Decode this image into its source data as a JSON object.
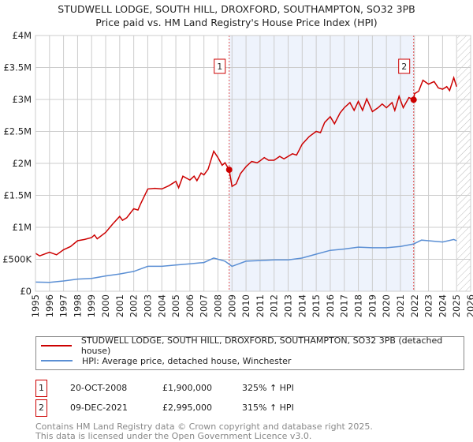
{
  "title": "STUDWELL LODGE, SOUTH HILL, DROXFORD, SOUTHAMPTON, SO32 3PB",
  "subtitle": "Price paid vs. HM Land Registry's House Price Index (HPI)",
  "colors": {
    "property": "#cc0000",
    "hpi": "#5b8fd4",
    "shade": "#eef3fc"
  },
  "chart_data": {
    "type": "line",
    "xlim": [
      1995,
      2026
    ],
    "ylim": [
      0,
      4000000
    ],
    "yticks": [
      0,
      500000,
      1000000,
      1500000,
      2000000,
      2500000,
      3000000,
      3500000,
      4000000
    ],
    "ytick_labels": [
      "£0",
      "£500K",
      "£1M",
      "£1.5M",
      "£2M",
      "£2.5M",
      "£3M",
      "£3.5M",
      "£4M"
    ],
    "xticks": [
      1995,
      1996,
      1997,
      1998,
      1999,
      2000,
      2001,
      2002,
      2003,
      2004,
      2005,
      2006,
      2007,
      2008,
      2009,
      2010,
      2011,
      2012,
      2013,
      2014,
      2015,
      2016,
      2017,
      2018,
      2019,
      2020,
      2021,
      2022,
      2023,
      2024,
      2025,
      2026
    ],
    "grid": true,
    "forecast_hatch_from": 2025.05,
    "series": [
      {
        "name": "STUDWELL LODGE, SOUTH HILL, DROXFORD, SOUTHAMPTON, SO32 3PB (detached house)",
        "color": "#cc0000",
        "x": [
          1995,
          1995.3,
          1996,
          1996.5,
          1997,
          1997.5,
          1998,
          1998.5,
          1999,
          1999.2,
          1999.4,
          2000,
          2000.5,
          2001,
          2001.2,
          2001.5,
          2002,
          2002.3,
          2002.5,
          2003,
          2003.5,
          2004,
          2004.5,
          2005,
          2005.2,
          2005.5,
          2006,
          2006.3,
          2006.5,
          2006.8,
          2007,
          2007.3,
          2007.7,
          2008,
          2008.3,
          2008.5,
          2008.8,
          2009,
          2009.3,
          2009.6,
          2010,
          2010.4,
          2010.8,
          2011,
          2011.3,
          2011.6,
          2012,
          2012.4,
          2012.7,
          2013,
          2013.3,
          2013.6,
          2014,
          2014.5,
          2015,
          2015.3,
          2015.6,
          2016,
          2016.3,
          2016.7,
          2017,
          2017.4,
          2017.7,
          2018,
          2018.3,
          2018.6,
          2019,
          2019.4,
          2019.7,
          2020,
          2020.4,
          2020.6,
          2020.9,
          2021.2,
          2021.6,
          2021.94,
          2022,
          2022.3,
          2022.6,
          2023,
          2023.4,
          2023.7,
          2024,
          2024.3,
          2024.5,
          2024.8,
          2025
        ],
        "y": [
          594000,
          553000,
          610000,
          570000,
          650000,
          700000,
          790000,
          810000,
          840000,
          880000,
          820000,
          920000,
          1050000,
          1170000,
          1110000,
          1150000,
          1290000,
          1270000,
          1370000,
          1600000,
          1610000,
          1600000,
          1650000,
          1720000,
          1620000,
          1800000,
          1740000,
          1800000,
          1730000,
          1850000,
          1820000,
          1910000,
          2190000,
          2090000,
          1970000,
          2010000,
          1900000,
          1640000,
          1680000,
          1840000,
          1950000,
          2030000,
          2010000,
          2040000,
          2090000,
          2050000,
          2050000,
          2110000,
          2070000,
          2110000,
          2150000,
          2130000,
          2300000,
          2420000,
          2500000,
          2480000,
          2640000,
          2730000,
          2620000,
          2790000,
          2870000,
          2950000,
          2830000,
          2970000,
          2830000,
          3010000,
          2810000,
          2870000,
          2930000,
          2870000,
          2950000,
          2830000,
          3050000,
          2870000,
          3030000,
          2995000,
          3090000,
          3130000,
          3300000,
          3240000,
          3280000,
          3180000,
          3160000,
          3200000,
          3140000,
          3340000,
          3200000
        ]
      },
      {
        "name": "HPI: Average price, detached house, Winchester",
        "color": "#5b8fd4",
        "x": [
          1995,
          1996,
          1997,
          1998,
          1999,
          2000,
          2001,
          2002,
          2003,
          2004,
          2005,
          2006,
          2007,
          2007.7,
          2008.5,
          2009,
          2010,
          2011,
          2012,
          2013,
          2014,
          2015,
          2016,
          2017,
          2018,
          2019,
          2020,
          2021,
          2021.94,
          2022.5,
          2023,
          2024,
          2024.8,
          2025
        ],
        "y": [
          143000,
          140000,
          160000,
          190000,
          200000,
          240000,
          270000,
          310000,
          390000,
          390000,
          410000,
          430000,
          450000,
          520000,
          470000,
          390000,
          470000,
          480000,
          490000,
          490000,
          520000,
          580000,
          640000,
          660000,
          690000,
          680000,
          680000,
          700000,
          740000,
          800000,
          790000,
          770000,
          810000,
          790000
        ]
      }
    ],
    "sales": [
      {
        "label": "1",
        "x": 2008.8,
        "y": 1900000
      },
      {
        "label": "2",
        "x": 2021.94,
        "y": 2995000
      }
    ]
  },
  "sales_table": [
    {
      "num": "1",
      "date": "20-OCT-2008",
      "price": "£1,900,000",
      "hpi": "325% ↑ HPI"
    },
    {
      "num": "2",
      "date": "09-DEC-2021",
      "price": "£2,995,000",
      "hpi": "315% ↑ HPI"
    }
  ],
  "footer": [
    "Contains HM Land Registry data © Crown copyright and database right 2025.",
    "This data is licensed under the Open Government Licence v3.0."
  ]
}
